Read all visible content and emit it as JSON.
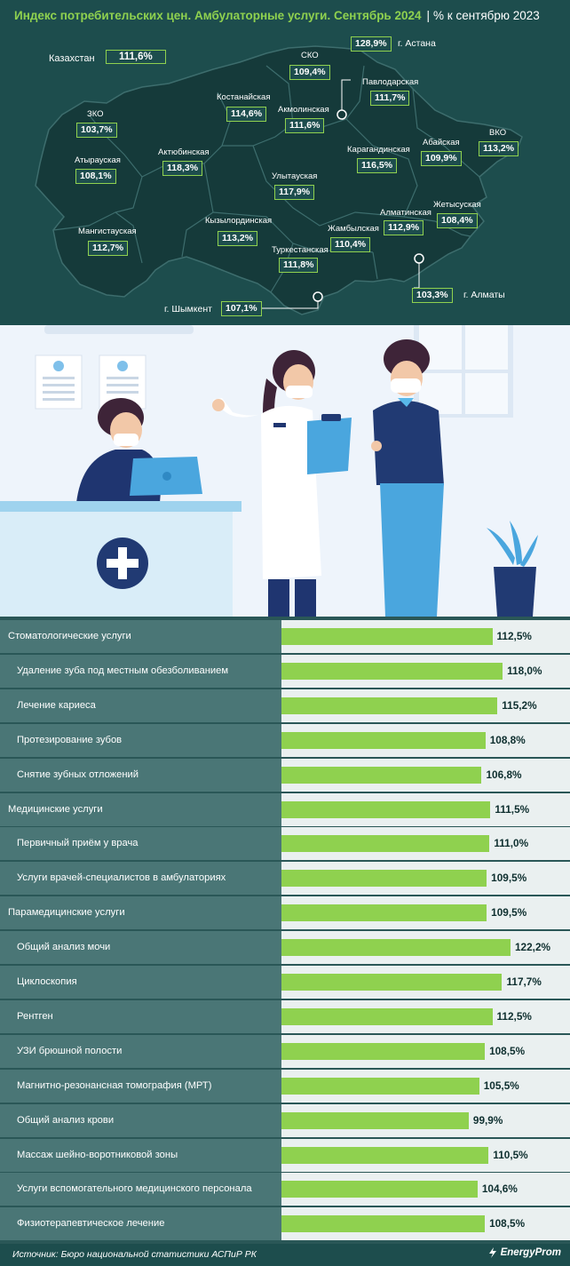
{
  "header": {
    "title": "Индекс потребительских цен. Амбулаторные услуги. Сентябрь 2024",
    "separator": "|",
    "unit": "% к сентябрю 2023"
  },
  "map": {
    "country": {
      "name": "Казахстан",
      "value": "111,6%"
    },
    "regions": [
      {
        "id": "sko",
        "name": "СКО",
        "value": "109,4%"
      },
      {
        "id": "astana",
        "name": "г. Астана",
        "value": "128,9%"
      },
      {
        "id": "pavlodar",
        "name": "Павлодарская",
        "value": "111,7%"
      },
      {
        "id": "kostanay",
        "name": "Костанайская",
        "value": "114,6%"
      },
      {
        "id": "akmola",
        "name": "Акмолинская",
        "value": "111,6%"
      },
      {
        "id": "zko",
        "name": "ЗКО",
        "value": "103,7%"
      },
      {
        "id": "vko",
        "name": "ВКО",
        "value": "113,2%"
      },
      {
        "id": "abay",
        "name": "Абайская",
        "value": "109,9%"
      },
      {
        "id": "aktobe",
        "name": "Актюбинская",
        "value": "118,3%"
      },
      {
        "id": "karaganda",
        "name": "Карагандинская",
        "value": "116,5%"
      },
      {
        "id": "atyrau",
        "name": "Атырауская",
        "value": "108,1%"
      },
      {
        "id": "ulytau",
        "name": "Улытауская",
        "value": "117,9%"
      },
      {
        "id": "zhetysu",
        "name": "Жетысуская",
        "value": "108,4%"
      },
      {
        "id": "almatyobl",
        "name": "Алматинская",
        "value": "112,9%"
      },
      {
        "id": "kyzylorda",
        "name": "Кызылординская",
        "value": "113,2%"
      },
      {
        "id": "zhambyl",
        "name": "Жамбылская",
        "value": "110,4%"
      },
      {
        "id": "mangystau",
        "name": "Мангистауская",
        "value": "112,7%"
      },
      {
        "id": "turkestan",
        "name": "Туркестанская",
        "value": "111,8%"
      },
      {
        "id": "almaty",
        "name": "г. Алматы",
        "value": "103,3%"
      },
      {
        "id": "shymkent",
        "name": "г. Шымкент",
        "value": "107,1%"
      }
    ]
  },
  "chart_data": {
    "type": "bar",
    "orientation": "horizontal",
    "title": "Индекс потребительских цен. Амбулаторные услуги. Сентябрь 2024",
    "unit": "% к сентябрю 2023",
    "xlim": [
      0,
      122.2
    ],
    "categories": [
      "Стоматологические услуги",
      "Удаление зуба под местным обезболиванием",
      "Лечение кариеса",
      "Протезирование зубов",
      "Снятие зубных отложений",
      "Медицинские услуги",
      "Первичный приём у врача",
      "Услуги врачей-специалистов в амбулаториях",
      "Парамедицинские услуги",
      "Общий анализ мочи",
      "Циклоскопия",
      "Рентген",
      "УЗИ брюшной полости",
      "Магнитно-резонансная томография (МРТ)",
      "Общий анализ крови",
      "Массаж шейно-воротниковой зоны",
      "Услуги вспомогательного медицинского персонала",
      "Физиотерапевтическое лечение"
    ],
    "values": [
      112.5,
      118.0,
      115.2,
      108.8,
      106.8,
      111.5,
      111.0,
      109.5,
      109.5,
      122.2,
      117.7,
      112.5,
      108.5,
      105.5,
      99.9,
      110.5,
      104.6,
      108.5
    ],
    "value_labels": [
      "112,5%",
      "118,0%",
      "115,2%",
      "108,8%",
      "106,8%",
      "111,5%",
      "111,0%",
      "109,5%",
      "109,5%",
      "122,2%",
      "117,7%",
      "112,5%",
      "108,5%",
      "105,5%",
      "99,9%",
      "110,5%",
      "104,6%",
      "108,5%"
    ],
    "levels": [
      "top",
      "sub",
      "sub",
      "sub",
      "sub",
      "top",
      "sub",
      "sub",
      "top",
      "sub",
      "sub",
      "sub",
      "sub",
      "sub",
      "sub",
      "sub",
      "sub",
      "sub"
    ]
  },
  "footer": {
    "source": "Источник: Бюро национальной статистики АСПиР РК",
    "logo": "EnergyProm"
  },
  "colors": {
    "accent": "#8fd14f",
    "background": "#1d4d4d",
    "row": "#4a7676"
  }
}
